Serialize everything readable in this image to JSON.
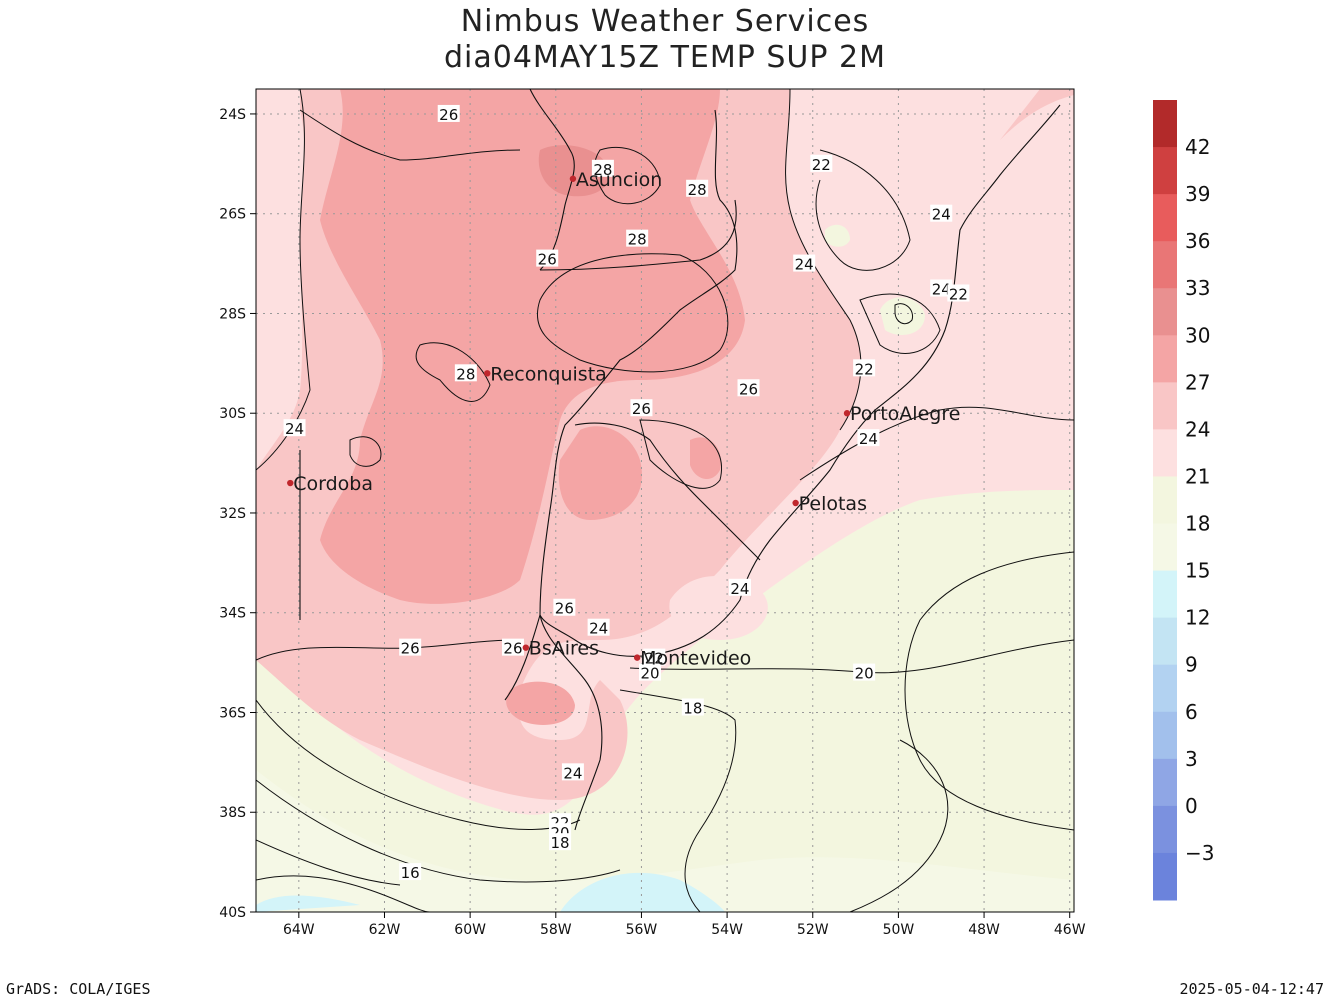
{
  "title_line1": "Nimbus Weather Services",
  "title_line2": "dia04MAY15Z TEMP SUP 2M",
  "footer_left": "GrADS: COLA/IGES",
  "footer_right": "2025-05-04-12:47",
  "lat_ticks": [
    "24S",
    "26S",
    "28S",
    "30S",
    "32S",
    "34S",
    "36S",
    "38S",
    "40S"
  ],
  "lon_ticks": [
    "64W",
    "62W",
    "60W",
    "58W",
    "56W",
    "54W",
    "52W",
    "50W",
    "48W",
    "46W"
  ],
  "colorbar": {
    "labels": [
      "42",
      "39",
      "36",
      "33",
      "30",
      "27",
      "24",
      "21",
      "18",
      "15",
      "12",
      "9",
      "6",
      "3",
      "0",
      "−3"
    ],
    "colors": [
      "#b22a2a",
      "#cf4040",
      "#e85c5c",
      "#e97676",
      "#e99090",
      "#f4a5a5",
      "#f9c6c6",
      "#fde0e0",
      "#f3f6df",
      "#f5f8e6",
      "#d3f4f9",
      "#c3e4f3",
      "#b2d2f1",
      "#a2c0ec",
      "#8fa6e5",
      "#7b91df",
      "#6b83dc"
    ]
  },
  "cities": [
    {
      "name": "Asuncion",
      "lon": -57.6,
      "lat": -25.3
    },
    {
      "name": "Reconquista",
      "lon": -59.6,
      "lat": -29.2
    },
    {
      "name": "Cordoba",
      "lon": -64.2,
      "lat": -31.4
    },
    {
      "name": "PortoAlegre",
      "lon": -51.2,
      "lat": -30.0
    },
    {
      "name": "Pelotas",
      "lon": -52.4,
      "lat": -31.8
    },
    {
      "name": "BsAires",
      "lon": -58.7,
      "lat": -34.7
    },
    {
      "name": "Montevideo",
      "lon": -56.1,
      "lat": -34.9
    }
  ],
  "contour_labels": [
    {
      "text": "26",
      "lon": -60.5,
      "lat": -24.0
    },
    {
      "text": "28",
      "lon": -56.9,
      "lat": -25.1
    },
    {
      "text": "28",
      "lon": -54.7,
      "lat": -25.5
    },
    {
      "text": "28",
      "lon": -56.1,
      "lat": -26.5
    },
    {
      "text": "26",
      "lon": -58.2,
      "lat": -26.9
    },
    {
      "text": "22",
      "lon": -51.8,
      "lat": -25.0
    },
    {
      "text": "24",
      "lon": -49.0,
      "lat": -26.0
    },
    {
      "text": "24",
      "lon": -52.2,
      "lat": -27.0
    },
    {
      "text": "24",
      "lon": -49.0,
      "lat": -27.5
    },
    {
      "text": "22",
      "lon": -48.6,
      "lat": -27.6
    },
    {
      "text": "22",
      "lon": -50.8,
      "lat": -29.1
    },
    {
      "text": "28",
      "lon": -60.1,
      "lat": -29.2
    },
    {
      "text": "26",
      "lon": -53.5,
      "lat": -29.5
    },
    {
      "text": "26",
      "lon": -56.0,
      "lat": -29.9
    },
    {
      "text": "24",
      "lon": -64.1,
      "lat": -30.3
    },
    {
      "text": "24",
      "lon": -50.7,
      "lat": -30.5
    },
    {
      "text": "26",
      "lon": -57.8,
      "lat": -33.9
    },
    {
      "text": "24",
      "lon": -57.0,
      "lat": -34.3
    },
    {
      "text": "24",
      "lon": -53.7,
      "lat": -33.5
    },
    {
      "text": "26",
      "lon": -61.4,
      "lat": -34.7
    },
    {
      "text": "26",
      "lon": -59.0,
      "lat": -34.7
    },
    {
      "text": "22",
      "lon": -55.7,
      "lat": -34.9
    },
    {
      "text": "20",
      "lon": -55.8,
      "lat": -35.2
    },
    {
      "text": "20",
      "lon": -50.8,
      "lat": -35.2
    },
    {
      "text": "18",
      "lon": -54.8,
      "lat": -35.9
    },
    {
      "text": "24",
      "lon": -57.6,
      "lat": -37.2
    },
    {
      "text": "22",
      "lon": -57.9,
      "lat": -38.2
    },
    {
      "text": "20",
      "lon": -57.9,
      "lat": -38.4
    },
    {
      "text": "18",
      "lon": -57.9,
      "lat": -38.6
    },
    {
      "text": "16",
      "lon": -61.4,
      "lat": -39.2
    }
  ]
}
